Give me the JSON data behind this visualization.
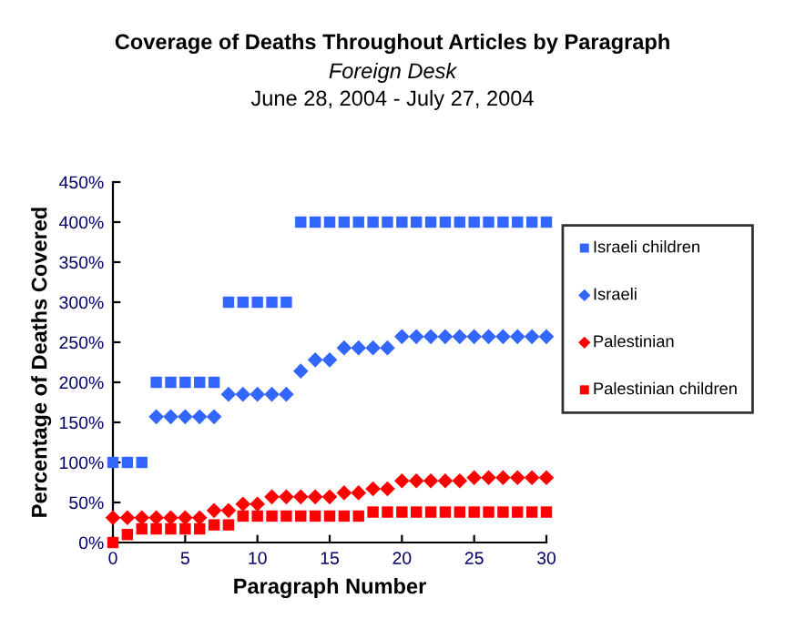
{
  "chart_data": {
    "type": "scatter",
    "title": "Coverage of Deaths Throughout Articles by Paragraph",
    "subtitle": "Foreign Desk",
    "annotations": [
      "June 28, 2004 - July 27, 2004"
    ],
    "xlabel": "Paragraph Number",
    "ylabel": "Percentage of Deaths Covered",
    "x": [
      0,
      1,
      2,
      3,
      4,
      5,
      6,
      7,
      8,
      9,
      10,
      11,
      12,
      13,
      14,
      15,
      16,
      17,
      18,
      19,
      20,
      21,
      22,
      23,
      24,
      25,
      26,
      27,
      28,
      29,
      30
    ],
    "series": [
      {
        "name": "Israeli children",
        "color": "#3366ff",
        "marker": "square",
        "values": [
          100,
          100,
          100,
          200,
          200,
          200,
          200,
          200,
          300,
          300,
          300,
          300,
          300,
          400,
          400,
          400,
          400,
          400,
          400,
          400,
          400,
          400,
          400,
          400,
          400,
          400,
          400,
          400,
          400,
          400,
          400
        ]
      },
      {
        "name": "Israeli",
        "color": "#3366ff",
        "marker": "diamond",
        "values": [
          null,
          null,
          null,
          157,
          157,
          157,
          157,
          157,
          185,
          185,
          185,
          185,
          185,
          214,
          228,
          228,
          243,
          243,
          243,
          243,
          257,
          257,
          257,
          257,
          257,
          257,
          257,
          257,
          257,
          257,
          257
        ]
      },
      {
        "name": "Palestinian",
        "color": "#ff0000",
        "marker": "diamond",
        "values": [
          31,
          31,
          31,
          31,
          31,
          31,
          31,
          40,
          40,
          48,
          48,
          57,
          57,
          57,
          57,
          57,
          62,
          62,
          67,
          67,
          77,
          77,
          77,
          77,
          77,
          81,
          81,
          81,
          81,
          81,
          81
        ]
      },
      {
        "name": "Palestinian children",
        "color": "#ff0000",
        "marker": "square",
        "values": [
          0,
          10,
          17,
          17,
          17,
          17,
          17,
          22,
          22,
          33,
          33,
          33,
          33,
          33,
          33,
          33,
          33,
          33,
          38,
          38,
          38,
          38,
          38,
          38,
          38,
          38,
          38,
          38,
          38,
          38,
          38
        ]
      }
    ],
    "xlim": [
      0,
      30
    ],
    "xticks": [
      0,
      5,
      10,
      15,
      20,
      25,
      30
    ],
    "ylim": [
      0,
      450
    ],
    "yticks": [
      {
        "value": 0,
        "label": "0%"
      },
      {
        "value": 50,
        "label": "50%"
      },
      {
        "value": 100,
        "label": "100%"
      },
      {
        "value": 150,
        "label": "150%"
      },
      {
        "value": 200,
        "label": "200%"
      },
      {
        "value": 250,
        "label": "250%"
      },
      {
        "value": 300,
        "label": "300%"
      },
      {
        "value": 350,
        "label": "350%"
      },
      {
        "value": 400,
        "label": "400%"
      },
      {
        "value": 450,
        "label": "450%"
      }
    ],
    "grid": false,
    "legend": "right"
  }
}
